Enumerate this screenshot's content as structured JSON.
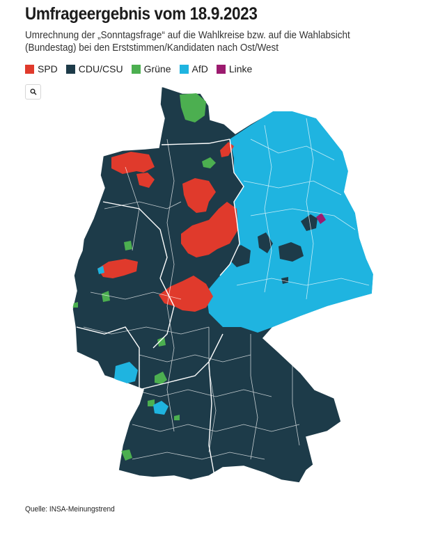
{
  "header": {
    "title": "Umfrageergebnis vom 18.9.2023",
    "subtitle": "Umrechnung der „Sonntagsfrage“ auf die Wahlkreise bzw. auf die Wahlabsicht (Bundestag) bei den Erststimmen/Kandidaten nach Ost/West"
  },
  "legend": [
    {
      "label": "SPD",
      "color": "#e03a2c"
    },
    {
      "label": "CDU/CSU",
      "color": "#1d3b49"
    },
    {
      "label": "Grüne",
      "color": "#4caf50"
    },
    {
      "label": "AfD",
      "color": "#1fb4e0"
    },
    {
      "label": "Linke",
      "color": "#9c1b6f"
    }
  ],
  "search": {
    "icon": "search-icon"
  },
  "map": {
    "country": "Deutschland"
  },
  "footer": {
    "source": "Quelle: INSA-Meinungstrend"
  }
}
